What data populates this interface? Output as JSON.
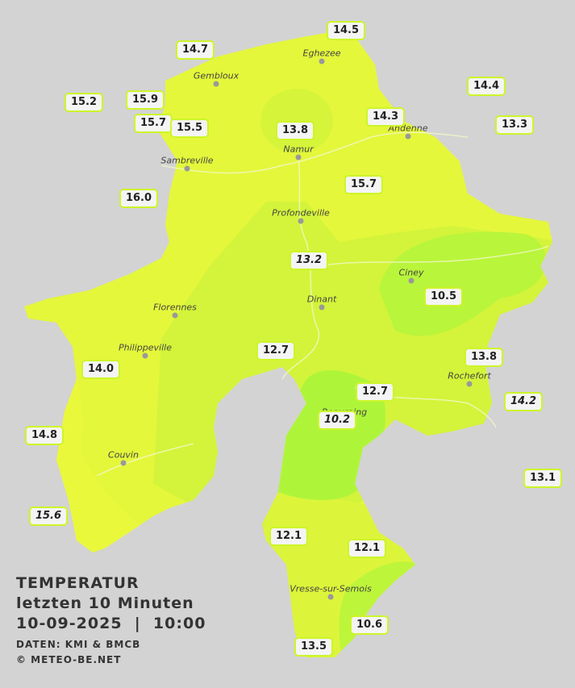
{
  "title": {
    "heading": "TEMPERATUR",
    "subtitle": "letzten 10 Minuten",
    "datetime": "10-09-2025  |  10:00",
    "source": "DATEN: KMI & BMCB",
    "copyright": "© METEO-BE.NET"
  },
  "cities": [
    "Eghezee",
    "Gembloux",
    "Andenne",
    "Namur",
    "Sambreville",
    "Profondeville",
    "Ciney",
    "Dinant",
    "Florennes",
    "Philippeville",
    "Rochefort",
    "Beauraing",
    "Couvin",
    "Vresse-sur-Semois"
  ],
  "stations": [
    "14.5",
    "14.7",
    "15.2",
    "15.9",
    "15.7",
    "15.5",
    "13.8",
    "14.3",
    "14.4",
    "13.3",
    "16.0",
    "15.7",
    "13.2",
    "10.5",
    "12.7",
    "13.8",
    "14.0",
    "12.7",
    "14.2",
    "10.2",
    "14.8",
    "13.1",
    "15.6",
    "12.1",
    "12.1",
    "10.6",
    "13.5"
  ]
}
